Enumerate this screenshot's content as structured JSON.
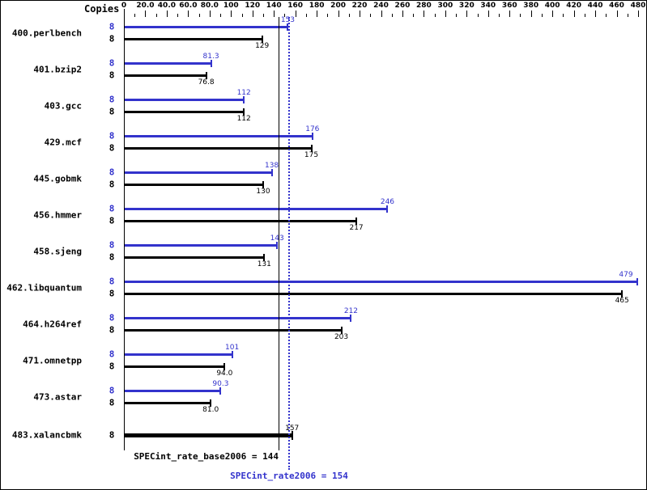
{
  "chart_data": {
    "type": "bar",
    "orientation": "horizontal",
    "copies_label": "Copies",
    "xlim": [
      0,
      480
    ],
    "x_tick_interval": 20,
    "x_tick_labels": [
      "0",
      "20.0",
      "40.0",
      "60.0",
      "80.0",
      "100",
      "120",
      "140",
      "160",
      "180",
      "200",
      "220",
      "240",
      "260",
      "280",
      "300",
      "320",
      "340",
      "360",
      "380",
      "400",
      "420",
      "440",
      "460",
      "480"
    ],
    "series_colors": {
      "peak": "#3333cc",
      "base": "#000000"
    },
    "benchmarks": [
      {
        "name": "400.perlbench",
        "copies": [
          "8",
          "8"
        ],
        "peak": 153,
        "peak_label": "153",
        "base": 129,
        "base_label": "129"
      },
      {
        "name": "401.bzip2",
        "copies": [
          "8",
          "8"
        ],
        "peak": 81.3,
        "peak_label": "81.3",
        "base": 76.8,
        "base_label": "76.8"
      },
      {
        "name": "403.gcc",
        "copies": [
          "8",
          "8"
        ],
        "peak": 112,
        "peak_label": "112",
        "base": 112,
        "base_label": "112"
      },
      {
        "name": "429.mcf",
        "copies": [
          "8",
          "8"
        ],
        "peak": 176,
        "peak_label": "176",
        "base": 175,
        "base_label": "175"
      },
      {
        "name": "445.gobmk",
        "copies": [
          "8",
          "8"
        ],
        "peak": 138,
        "peak_label": "138",
        "base": 130,
        "base_label": "130"
      },
      {
        "name": "456.hmmer",
        "copies": [
          "8",
          "8"
        ],
        "peak": 246,
        "peak_label": "246",
        "base": 217,
        "base_label": "217"
      },
      {
        "name": "458.sjeng",
        "copies": [
          "8",
          "8"
        ],
        "peak": 143,
        "peak_label": "143",
        "base": 131,
        "base_label": "131"
      },
      {
        "name": "462.libquantum",
        "copies": [
          "8",
          "8"
        ],
        "peak": 479,
        "peak_label": "479",
        "base": 465,
        "base_label": "465"
      },
      {
        "name": "464.h264ref",
        "copies": [
          "8",
          "8"
        ],
        "peak": 212,
        "peak_label": "212",
        "base": 203,
        "base_label": "203"
      },
      {
        "name": "471.omnetpp",
        "copies": [
          "8",
          "8"
        ],
        "peak": 101,
        "peak_label": "101",
        "base": 94.0,
        "base_label": "94.0"
      },
      {
        "name": "473.astar",
        "copies": [
          "8",
          "8"
        ],
        "peak": 90.3,
        "peak_label": "90.3",
        "base": 81.0,
        "base_label": "81.0"
      },
      {
        "name": "483.xalancbmk",
        "copies": [
          "8"
        ],
        "single": true,
        "base": 157,
        "base_label": "157"
      }
    ],
    "reference_lines": [
      {
        "id": "base",
        "label": "SPECint_rate_base2006 = 144",
        "value": 144,
        "color": "#000000",
        "style": "solid"
      },
      {
        "id": "peak",
        "label": "SPECint_rate2006 = 154",
        "value": 154,
        "color": "#3333cc",
        "style": "dotted"
      }
    ]
  }
}
